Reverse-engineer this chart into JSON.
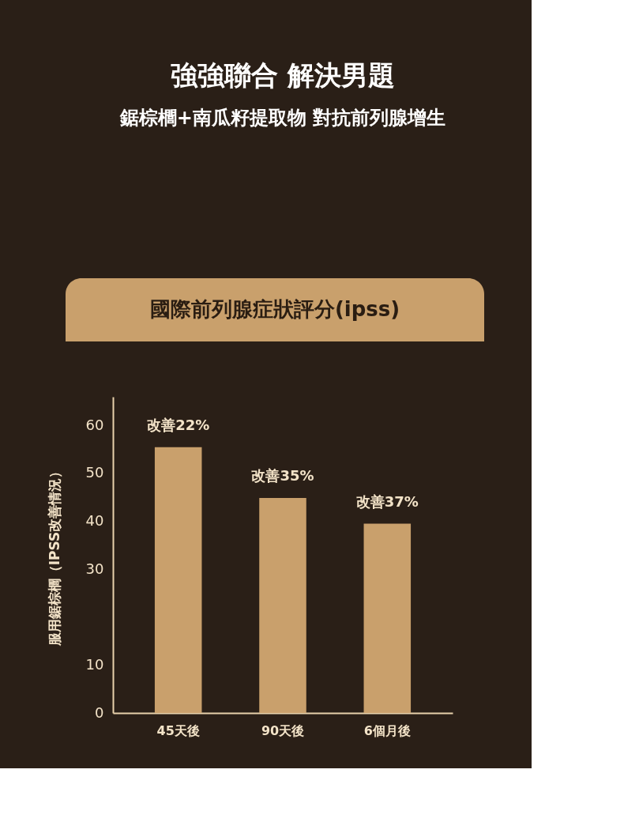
{
  "chart_data": {
    "type": "bar",
    "title": "強強聯合 解決男題",
    "subtitle": "鋸棕櫚+南瓜籽提取物 對抗前列腺增生",
    "ylabel": "服用鋸棕櫚（IPSS改善情況）",
    "categories": [
      "45天後",
      "90天後",
      "6個月後"
    ],
    "values": [
      55.5,
      44.9,
      39.5
    ],
    "color": "#c9a06c",
    "ylim": [
      0,
      66
    ],
    "yticks": [
      0,
      10,
      30,
      40,
      50,
      60
    ],
    "grid": false,
    "annotations": [
      "國際前列腺症狀評分(ipss)",
      "改善22%",
      "改善35%",
      "改善37%"
    ]
  }
}
